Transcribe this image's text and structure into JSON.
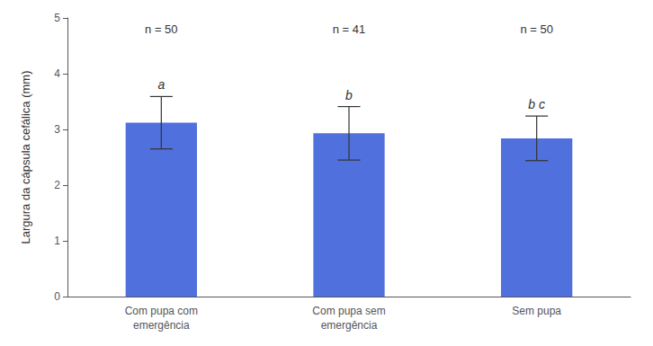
{
  "chart_data": {
    "type": "bar",
    "categories": [
      "Com pupa com\nemergência",
      "Com pupa sem\nemergência",
      "Sem pupa"
    ],
    "values": [
      3.12,
      2.93,
      2.84
    ],
    "errors": [
      0.47,
      0.48,
      0.4
    ],
    "n_labels": [
      "n = 50",
      "n = 41",
      "n = 50"
    ],
    "sig_labels": [
      "a",
      "b",
      "b c"
    ],
    "ylabel": "Largura da cápsula cefálica (mm)",
    "ylim": [
      0,
      5
    ],
    "yticks": [
      0,
      1,
      2,
      3,
      4,
      5
    ],
    "grid": false
  }
}
